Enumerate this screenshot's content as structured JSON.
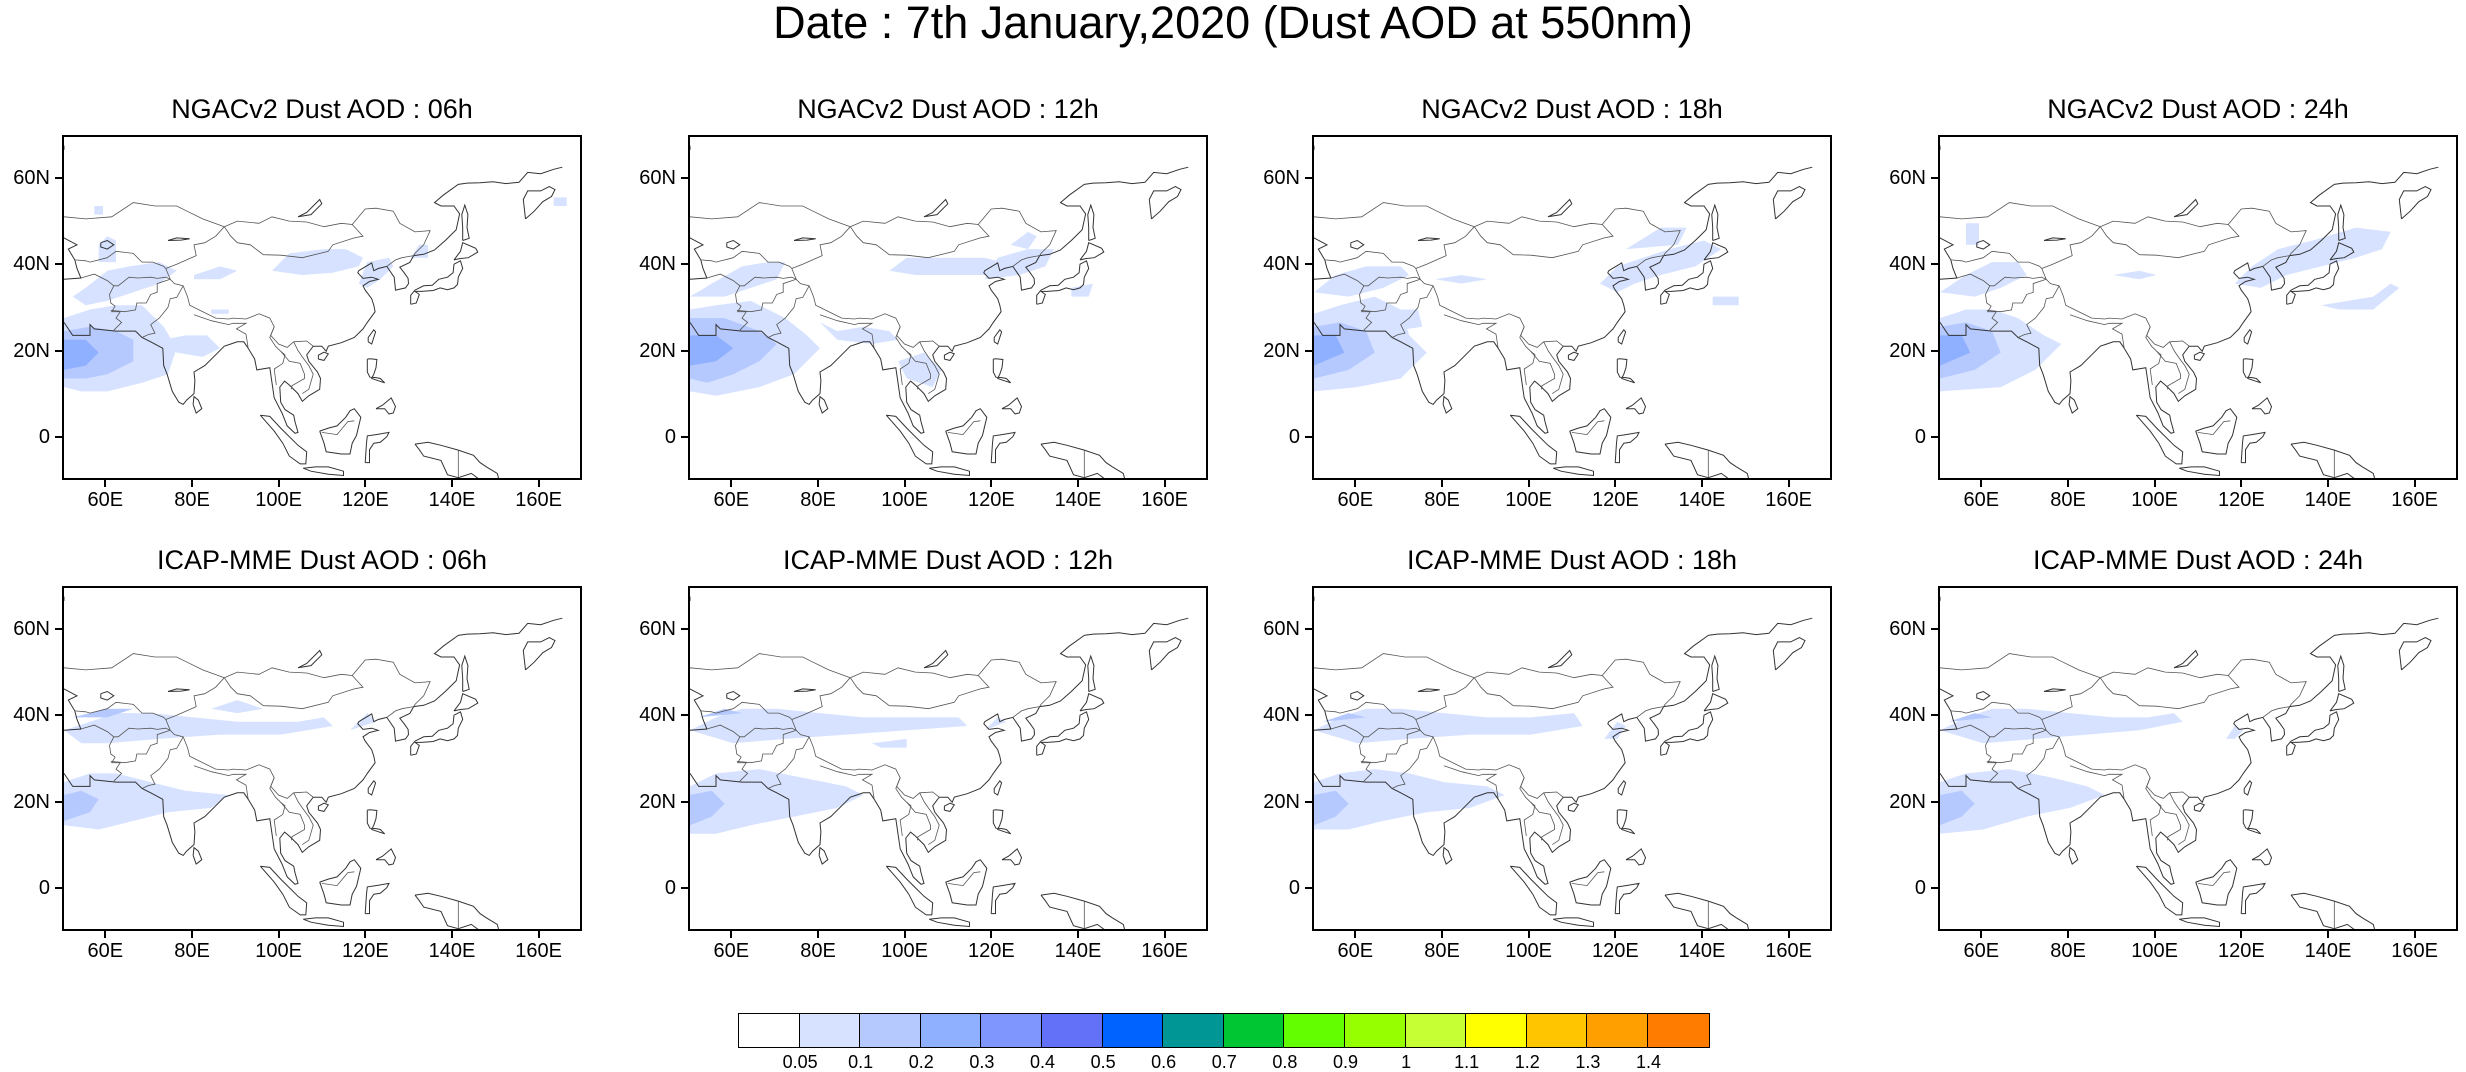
{
  "title": "Date : 7th January,2020 (Dust AOD at 550nm)",
  "panels": [
    {
      "title": "NGACv2 Dust AOD : 06h",
      "model": "NGACv2",
      "hour": "06h"
    },
    {
      "title": "NGACv2 Dust AOD : 12h",
      "model": "NGACv2",
      "hour": "12h"
    },
    {
      "title": "NGACv2 Dust AOD : 18h",
      "model": "NGACv2",
      "hour": "18h"
    },
    {
      "title": "NGACv2 Dust AOD : 24h",
      "model": "NGACv2",
      "hour": "24h"
    },
    {
      "title": "ICAP-MME Dust AOD : 06h",
      "model": "ICAP-MME",
      "hour": "06h"
    },
    {
      "title": "ICAP-MME Dust AOD : 12h",
      "model": "ICAP-MME",
      "hour": "12h"
    },
    {
      "title": "ICAP-MME Dust AOD : 18h",
      "model": "ICAP-MME",
      "hour": "18h"
    },
    {
      "title": "ICAP-MME Dust AOD : 24h",
      "model": "ICAP-MME",
      "hour": "24h"
    }
  ],
  "axes": {
    "lat_ticks": [
      "60N",
      "40N",
      "20N",
      "0"
    ],
    "lat_values": [
      60,
      40,
      20,
      0
    ],
    "lon_ticks": [
      "60E",
      "80E",
      "100E",
      "120E",
      "140E",
      "160E"
    ],
    "lon_values": [
      60,
      80,
      100,
      120,
      140,
      160
    ],
    "lon_range": [
      50,
      170
    ],
    "lat_range": [
      -10,
      70
    ]
  },
  "colorbar": {
    "labels": [
      "0.05",
      "0.1",
      "0.2",
      "0.3",
      "0.4",
      "0.5",
      "0.6",
      "0.7",
      "0.8",
      "0.9",
      "1",
      "1.1",
      "1.2",
      "1.3",
      "1.4"
    ],
    "colors": [
      "#ffffff",
      "#d6e2ff",
      "#b5c9ff",
      "#8fb0ff",
      "#7f96ff",
      "#6370f8",
      "#0063ff",
      "#009696",
      "#00c633",
      "#63ff00",
      "#96ff00",
      "#c6ff33",
      "#ffff00",
      "#ffc600",
      "#ffa000",
      "#ff7c00",
      "#ff1900"
    ]
  }
}
